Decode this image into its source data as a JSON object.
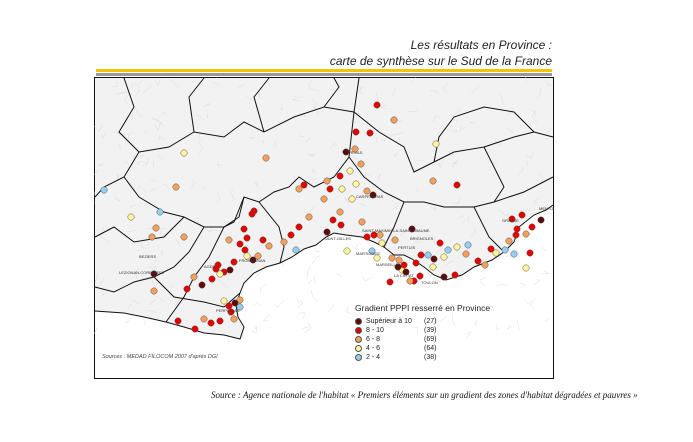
{
  "header": {
    "title_line1": "Les résultats en Province :",
    "title_line2": "carte de synthèse sur le Sud de la France"
  },
  "map": {
    "source": "Sources : MEDAD FILOCOM 2007 d'après DGI",
    "city_labels": [
      "CARPENTRAS",
      "PERTUIS",
      "MENTON",
      "GRASSE",
      "SAINT-MAXIMIN-LA-SAINTE-BAUME",
      "BRIGNOLES",
      "MARTIGUES",
      "LA CIOTAT",
      "TOULON",
      "MARSEILLE",
      "BEZIERS",
      "AGDE",
      "FRONTIGNAN",
      "LEZIGNAN-CORBIERES",
      "PERPIGNAN",
      "PRIVAS",
      "SAINT-GILLES"
    ],
    "colors": {
      "sup10": "#5c0a0a",
      "8-10": "#e60000",
      "6-8": "#f2a05a",
      "4-6": "#fff59a",
      "2-4": "#92cff0",
      "land": "#f3f3f3",
      "border": "#111111"
    }
  },
  "legend": {
    "title": "Gradient PPPI resserré en Province",
    "items": [
      {
        "label": "Supérieur à 10",
        "count": "(27)",
        "color": "#5c0a0a"
      },
      {
        "label": "8 - 10",
        "count": "(39)",
        "color": "#e60000"
      },
      {
        "label": "6 -  8",
        "count": "(69)",
        "color": "#f2a05a"
      },
      {
        "label": "4 -  6",
        "count": "(64)",
        "color": "#fff59a"
      },
      {
        "label": "2 -  4",
        "count": "(38)",
        "color": "#92cff0"
      }
    ]
  },
  "footer": {
    "source": "Source : Agence nationale de l'habitat « Premiers éléments sur un gradient des zones d'habitat dégradées et pauvres »"
  }
}
